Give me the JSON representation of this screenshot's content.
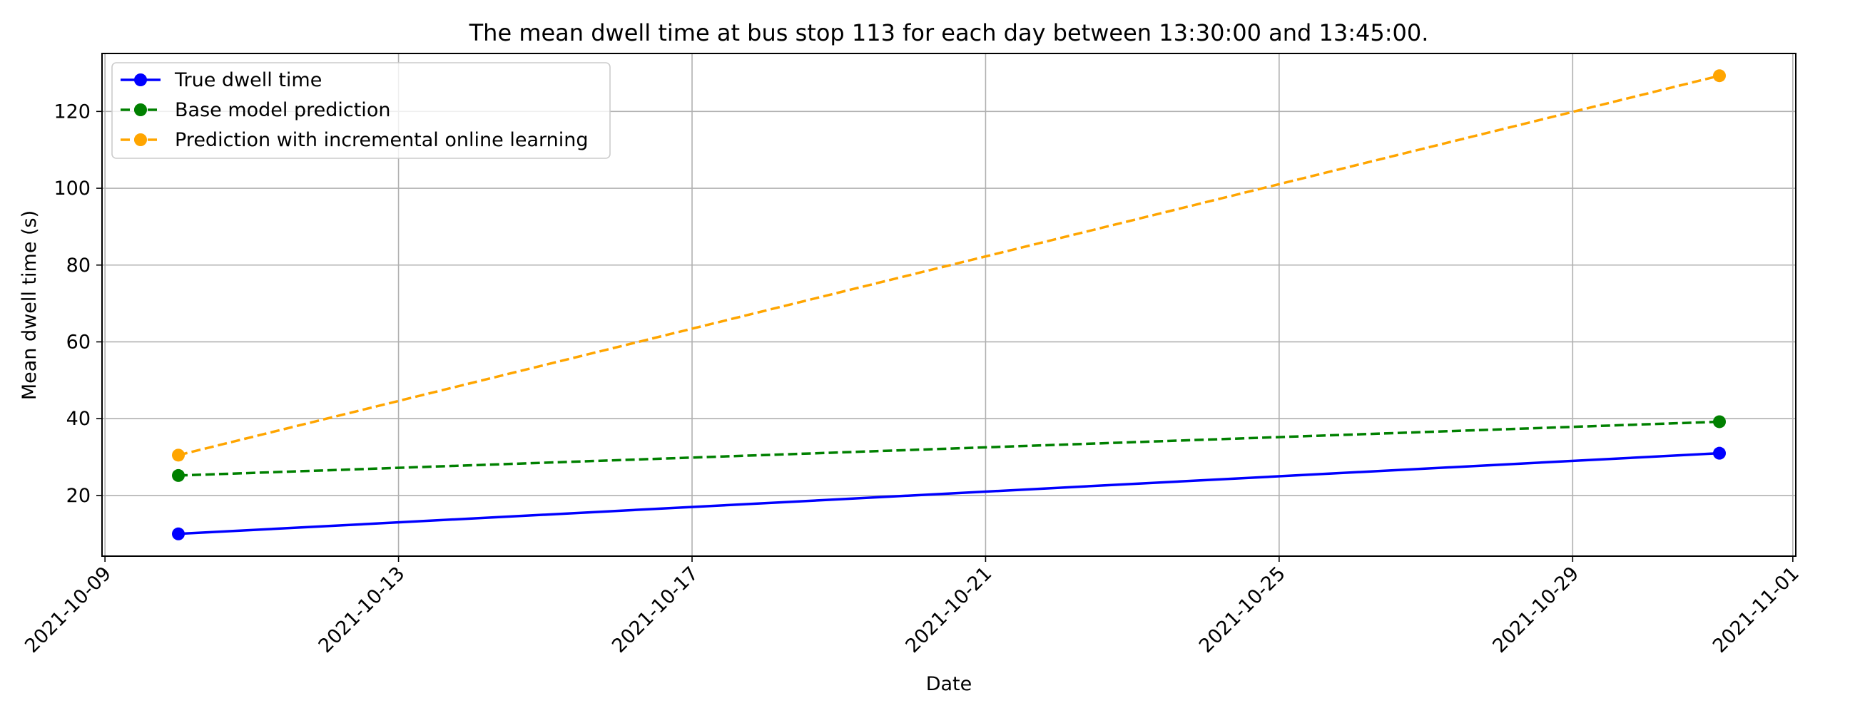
{
  "chart_data": {
    "type": "line",
    "title": "The mean dwell time at bus stop 113 for each day between 13:30:00 and 13:45:00.",
    "xlabel": "Date",
    "ylabel": "Mean dwell time (s)",
    "x": [
      "2021-10-10",
      "2021-10-31"
    ],
    "xlim": [
      "2021-10-08T23:02:00",
      "2021-11-01T00:58:00"
    ],
    "ylim": [
      4.2,
      135.1
    ],
    "xticks": [
      "2021-10-09",
      "2021-10-13",
      "2021-10-17",
      "2021-10-21",
      "2021-10-25",
      "2021-10-29",
      "2021-11-01"
    ],
    "yticks": [
      20,
      40,
      60,
      80,
      100,
      120
    ],
    "grid": true,
    "legend_position": "upper left",
    "series": [
      {
        "name": "True dwell time",
        "values": [
          10.0,
          31.0
        ],
        "color": "#0000ff",
        "linestyle": "solid",
        "marker": "circle"
      },
      {
        "name": "Base model prediction",
        "values": [
          25.2,
          39.2
        ],
        "color": "#008000",
        "linestyle": "dashed",
        "marker": "circle"
      },
      {
        "name": "Prediction with incremental online learning",
        "values": [
          30.5,
          129.3
        ],
        "color": "#ffa500",
        "linestyle": "dashed",
        "marker": "circle"
      }
    ]
  }
}
